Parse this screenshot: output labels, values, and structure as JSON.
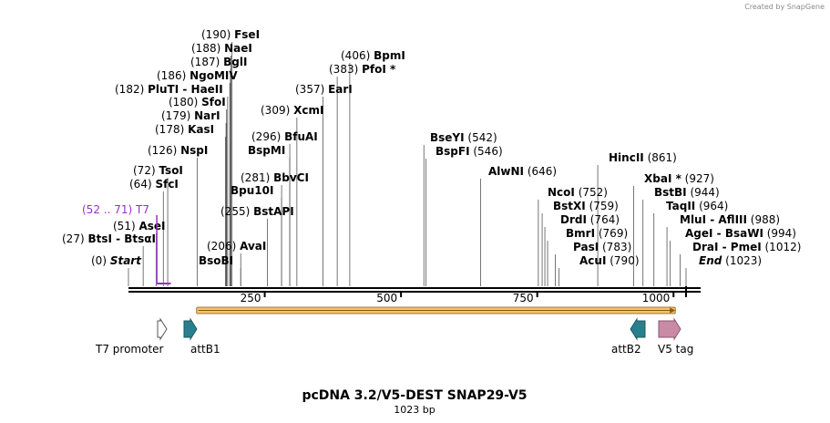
{
  "credit": "Created by SnapGene",
  "title": "pcDNA 3.2/V5-DEST SNAP29-V5",
  "subtitle": "1023 bp",
  "sequence_length": 1023,
  "colors": {
    "primer": "#9b2fc9",
    "orf_fill": "#f2c27a",
    "orf_edge": "#8a5a00",
    "att": "#2a7f8c",
    "tag": "#c98aa6"
  },
  "ticks": [
    {
      "pos": 250,
      "label": "250"
    },
    {
      "pos": 500,
      "label": "500"
    },
    {
      "pos": 750,
      "label": "750"
    },
    {
      "pos": 1000,
      "label": "1000"
    }
  ],
  "sites": [
    {
      "pos": 0,
      "pos_label": "(0)",
      "name": "Start",
      "italic": true
    },
    {
      "pos": 27,
      "pos_label": "(27)",
      "name": "BtsI - BtsαI"
    },
    {
      "pos": 51,
      "pos_label": "(51)",
      "name": "AseI"
    },
    {
      "pos": 64,
      "pos_label": "(64)",
      "name": "SfcI"
    },
    {
      "pos": 72,
      "pos_label": "(72)",
      "name": "TsoI"
    },
    {
      "pos": 126,
      "pos_label": "(126)",
      "name": "NspI"
    },
    {
      "pos": 178,
      "pos_label": "(178)",
      "name": "KasI"
    },
    {
      "pos": 179,
      "pos_label": "(179)",
      "name": "NarI"
    },
    {
      "pos": 180,
      "pos_label": "(180)",
      "name": "SfoI"
    },
    {
      "pos": 182,
      "pos_label": "(182)",
      "name": "PluTI - HaeII"
    },
    {
      "pos": 186,
      "pos_label": "(186)",
      "name": "NgoMIV"
    },
    {
      "pos": 187,
      "pos_label": "(187)",
      "name": "BglI"
    },
    {
      "pos": 188,
      "pos_label": "(188)",
      "name": "NaeI"
    },
    {
      "pos": 190,
      "pos_label": "(190)",
      "name": "FseI"
    },
    {
      "pos": 206,
      "pos_label": "(206)",
      "name": "AvaI"
    },
    {
      "pos": 206,
      "pos_label": "",
      "name": "BsoBI"
    },
    {
      "pos": 255,
      "pos_label": "(255)",
      "name": "BstAPI"
    },
    {
      "pos": 281,
      "pos_label": "",
      "name": "Bpu10I"
    },
    {
      "pos": 281,
      "pos_label": "(281)",
      "name": "BbvCI"
    },
    {
      "pos": 296,
      "pos_label": "",
      "name": "BspMI"
    },
    {
      "pos": 296,
      "pos_label": "(296)",
      "name": "BfuAI"
    },
    {
      "pos": 309,
      "pos_label": "(309)",
      "name": "XcmI"
    },
    {
      "pos": 357,
      "pos_label": "(357)",
      "name": "EarI"
    },
    {
      "pos": 383,
      "pos_label": "(383)",
      "name": "PfoI *"
    },
    {
      "pos": 406,
      "pos_label": "(406)",
      "name": "BpmI"
    },
    {
      "pos": 542,
      "pos_label": "(542)",
      "name": "BseYI"
    },
    {
      "pos": 546,
      "pos_label": "(546)",
      "name": "BspFI"
    },
    {
      "pos": 646,
      "pos_label": "(646)",
      "name": "AlwNI"
    },
    {
      "pos": 752,
      "pos_label": "(752)",
      "name": "NcoI"
    },
    {
      "pos": 759,
      "pos_label": "(759)",
      "name": "BstXI"
    },
    {
      "pos": 764,
      "pos_label": "(764)",
      "name": "DrdI"
    },
    {
      "pos": 769,
      "pos_label": "(769)",
      "name": "BmrI"
    },
    {
      "pos": 783,
      "pos_label": "(783)",
      "name": "PasI"
    },
    {
      "pos": 790,
      "pos_label": "(790)",
      "name": "AcuI"
    },
    {
      "pos": 861,
      "pos_label": "(861)",
      "name": "HincII"
    },
    {
      "pos": 927,
      "pos_label": "(927)",
      "name": "XbaI *"
    },
    {
      "pos": 944,
      "pos_label": "(944)",
      "name": "BstBI"
    },
    {
      "pos": 964,
      "pos_label": "(964)",
      "name": "TaqII"
    },
    {
      "pos": 988,
      "pos_label": "(988)",
      "name": "MluI - AflIII"
    },
    {
      "pos": 994,
      "pos_label": "(994)",
      "name": "AgeI - BsaWI"
    },
    {
      "pos": 1012,
      "pos_label": "(1012)",
      "name": "DraI - PmeI"
    },
    {
      "pos": 1023,
      "pos_label": "(1023)",
      "name": "End",
      "italic": true
    }
  ],
  "primer": {
    "name": "T7",
    "pos_label": "(52 .. 71)",
    "start": 52,
    "end": 71
  },
  "orf": {
    "start": 125,
    "end": 1000
  },
  "features": [
    {
      "name": "T7 promoter",
      "start": 52,
      "end": 71,
      "direction": "forward",
      "style": "outline"
    },
    {
      "name": "attB1",
      "start": 100,
      "end": 125,
      "direction": "forward",
      "style": "att"
    },
    {
      "name": "attB2",
      "start": 900,
      "end": 925,
      "direction": "reverse",
      "style": "att"
    },
    {
      "name": "V5 tag",
      "start": 950,
      "end": 992,
      "direction": "forward",
      "style": "tag"
    }
  ]
}
